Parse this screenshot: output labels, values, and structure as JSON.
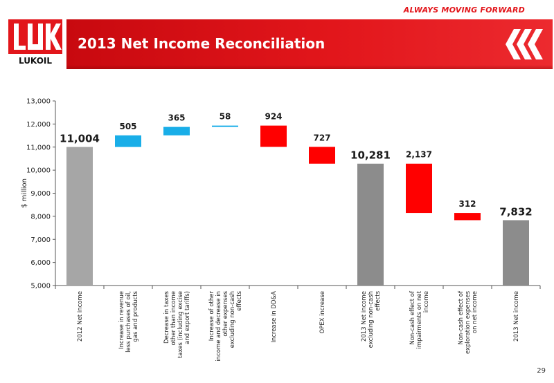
{
  "header": {
    "tagline": "ALWAYS MOVING FORWARD",
    "title": "2013 Net Income Reconciliation",
    "logo_text": "LUKOIL",
    "page_number": "29"
  },
  "colors": {
    "brand_red": "#e2161b",
    "total_gray": "#999999",
    "increase_blue": "#19aee8",
    "decrease_red": "#ff0000"
  },
  "chart_data": {
    "type": "bar",
    "subtype": "waterfall",
    "ylabel": "$ million",
    "ylim": [
      5000,
      13000
    ],
    "yticks": [
      "5,000",
      "6,000",
      "7,000",
      "8,000",
      "9,000",
      "10,000",
      "11,000",
      "12,000",
      "13,000"
    ],
    "categories": [
      [
        "2012 Net income"
      ],
      [
        "Increase in revenue",
        "less purchases of oil,",
        "gas and products"
      ],
      [
        "Decrease in taxes",
        "other than income",
        "taxes (including excise",
        "and export tariffs)"
      ],
      [
        "Increase of other",
        "income and decrease in",
        "other  expenses",
        "excluding non-cash",
        "effects"
      ],
      [
        "Increase in DD&A"
      ],
      [
        "OPEX increase"
      ],
      [
        "2013 Net income",
        "excluding non-cash",
        "effects"
      ],
      [
        "Non-cash effect of",
        "impairments on net",
        "income"
      ],
      [
        "Non-cash effect of",
        "exploration expenses",
        "on net income"
      ],
      [
        "2013 Net income"
      ]
    ],
    "bars": [
      {
        "kind": "total",
        "base": 5000,
        "top": 11004,
        "label": "11,004"
      },
      {
        "kind": "increase",
        "base": 11004,
        "top": 11509,
        "label": "505"
      },
      {
        "kind": "increase",
        "base": 11509,
        "top": 11874,
        "label": "365"
      },
      {
        "kind": "increase",
        "base": 11874,
        "top": 11932,
        "label": "58"
      },
      {
        "kind": "decrease",
        "base": 11008,
        "top": 11932,
        "label": "924"
      },
      {
        "kind": "decrease",
        "base": 10281,
        "top": 11008,
        "label": "727"
      },
      {
        "kind": "total",
        "base": 5000,
        "top": 10281,
        "label": "10,281"
      },
      {
        "kind": "decrease",
        "base": 8144,
        "top": 10281,
        "label": "2,137"
      },
      {
        "kind": "decrease",
        "base": 7832,
        "top": 8144,
        "label": "312"
      },
      {
        "kind": "total",
        "base": 5000,
        "top": 7832,
        "label": "7,832"
      }
    ]
  }
}
